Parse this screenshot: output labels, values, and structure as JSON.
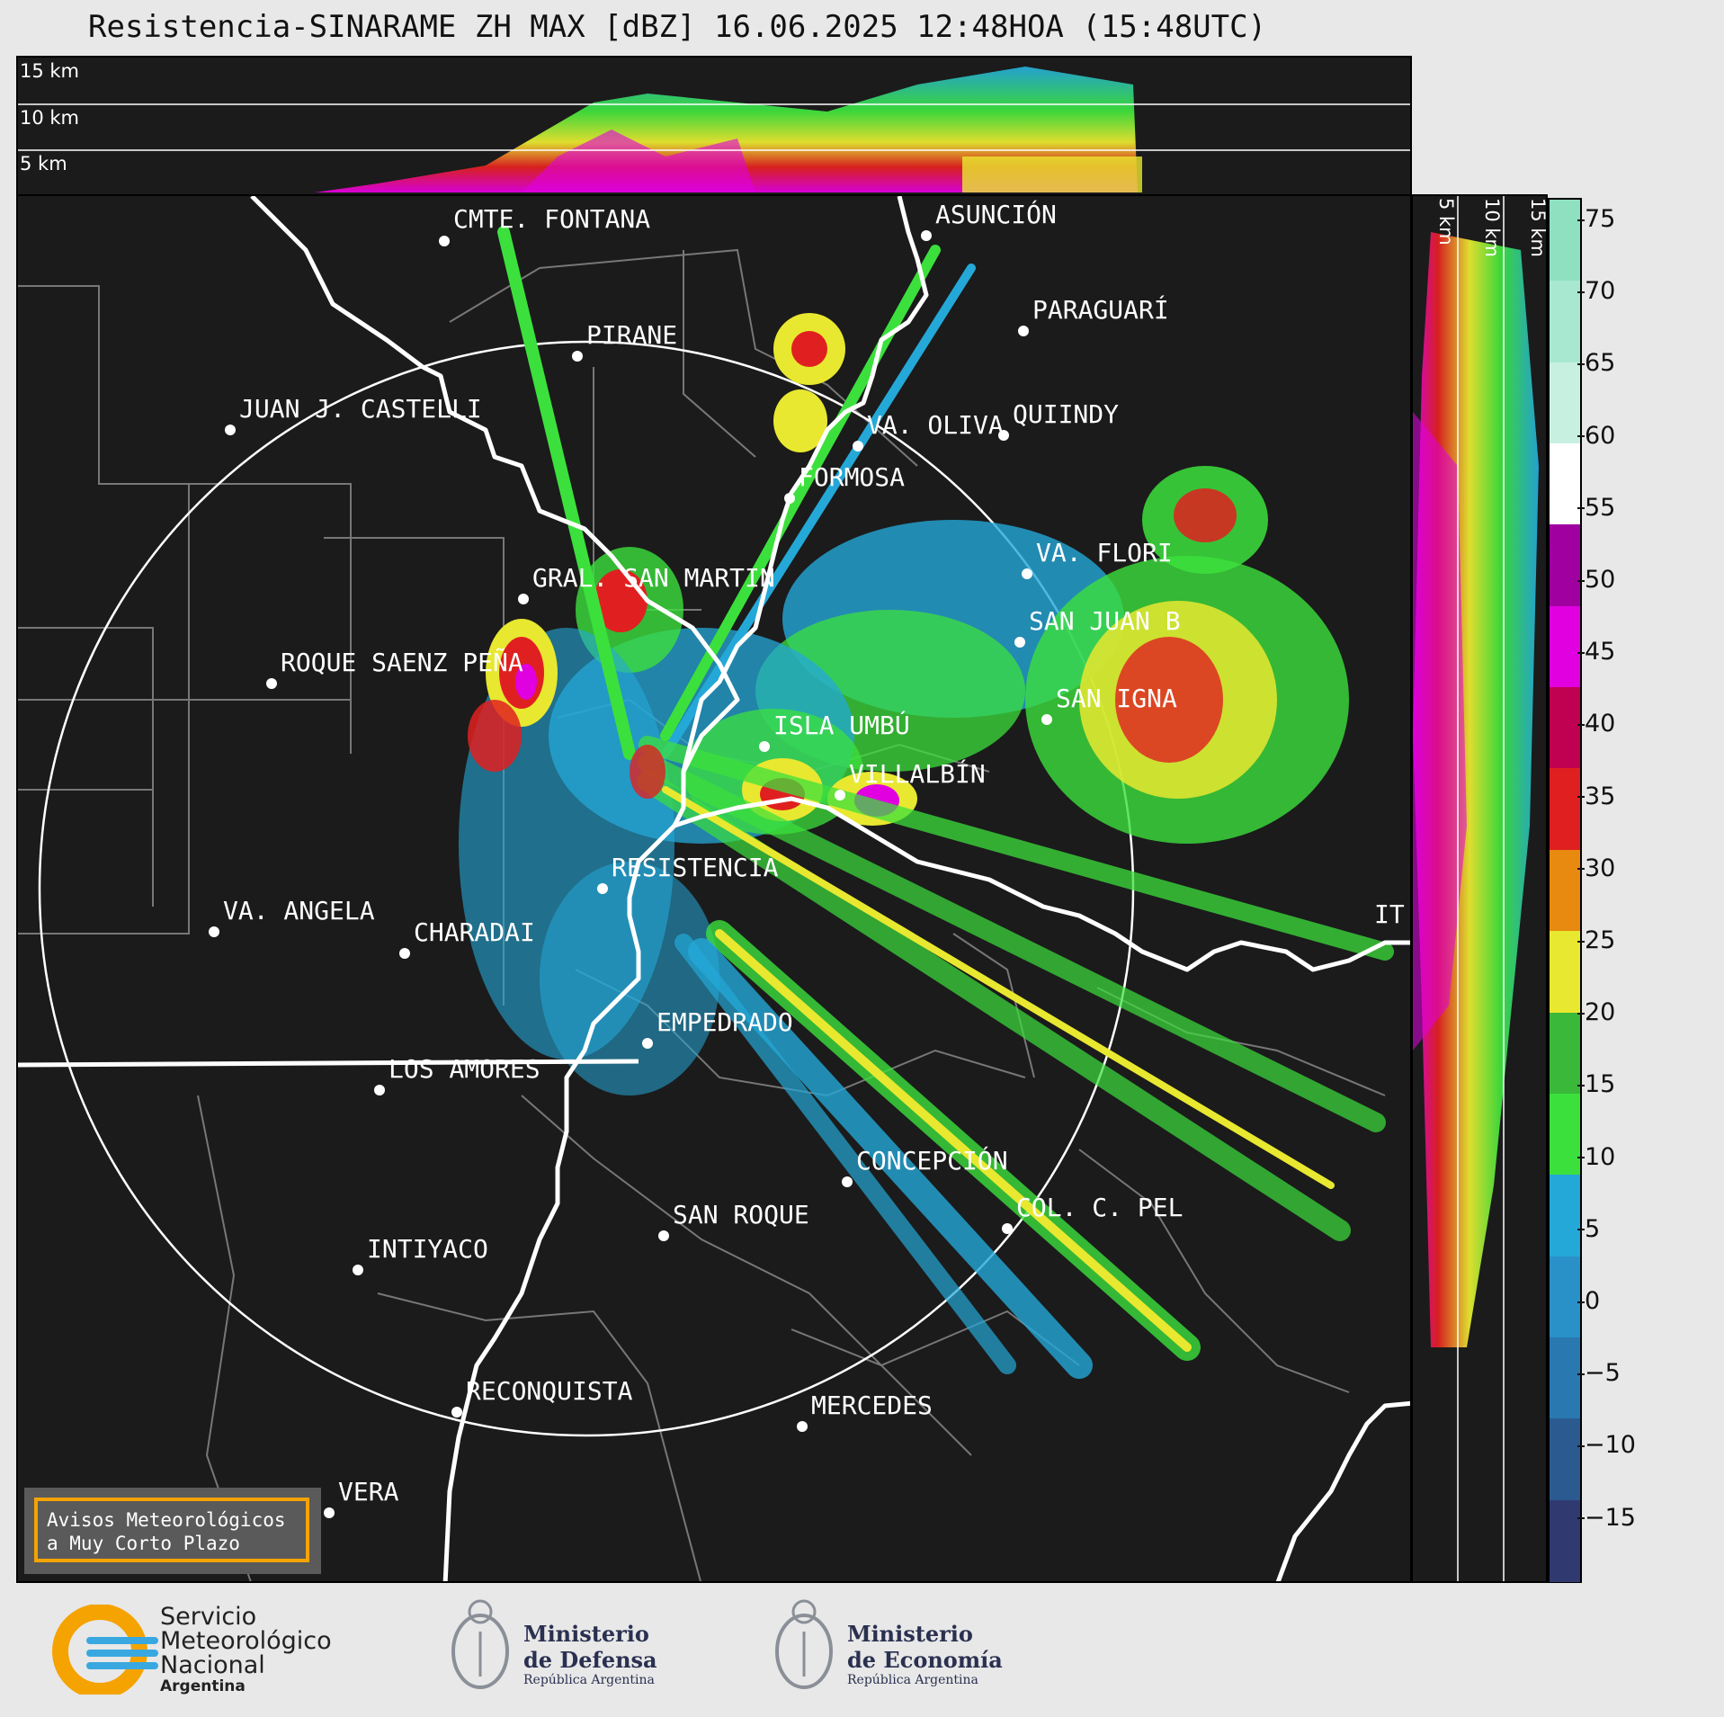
{
  "title": "Resistencia-SINARAME ZH MAX [dBZ] 16.06.2025 12:48HOA (15:48UTC)",
  "top_altitudes": [
    "15 km",
    "10 km",
    "5 km"
  ],
  "side_altitudes": [
    "5 km",
    "10 km",
    "15 km"
  ],
  "places": [
    {
      "name": "CMTE. FONTANA"
    },
    {
      "name": "ASUNCIÓN"
    },
    {
      "name": "PARAGUARÍ"
    },
    {
      "name": "PIRANE"
    },
    {
      "name": "JUAN J. CASTELLI"
    },
    {
      "name": "VA. OLIVA"
    },
    {
      "name": "QUIINDY"
    },
    {
      "name": "FORMOSA"
    },
    {
      "name": "VA. FLORI"
    },
    {
      "name": "GRAL. SAN MARTIN"
    },
    {
      "name": "SAN JUAN B"
    },
    {
      "name": "ROQUE SAENZ PEÑA"
    },
    {
      "name": "SAN IGNA"
    },
    {
      "name": "ISLA UMBÚ"
    },
    {
      "name": "VILLALBÍN"
    },
    {
      "name": "RESISTENCIA"
    },
    {
      "name": "VA. ANGELA"
    },
    {
      "name": "CHARADAI"
    },
    {
      "name": "IT"
    },
    {
      "name": "EMPEDRADO"
    },
    {
      "name": "LOS AMORES"
    },
    {
      "name": "CONCEPCIÓN"
    },
    {
      "name": "SAN ROQUE"
    },
    {
      "name": "COL. C. PEL"
    },
    {
      "name": "INTIYACO"
    },
    {
      "name": "RECONQUISTA"
    },
    {
      "name": "MERCEDES"
    },
    {
      "name": "VERA"
    }
  ],
  "colorbar": {
    "unit": "dBZ",
    "ticks": [
      "75",
      "70",
      "65",
      "60",
      "55",
      "50",
      "45",
      "40",
      "35",
      "30",
      "25",
      "20",
      "15",
      "10",
      "5",
      "0",
      "−5",
      "−10",
      "−15"
    ],
    "colors": [
      "#8fe0c0",
      "#a8e8d0",
      "#c8f0e0",
      "#ffffff",
      "#a000a0",
      "#e000e0",
      "#c00050",
      "#e02020",
      "#e88a10",
      "#e8e830",
      "#3ab83a",
      "#3ce03c",
      "#24a8d8",
      "#2a90c8",
      "#2a78b0",
      "#2a5a90",
      "#303a70"
    ]
  },
  "notice": {
    "line1": "Avisos Meteorológicos",
    "line2": "a Muy Corto Plazo"
  },
  "logos": {
    "smn": {
      "line1": "Servicio",
      "line2": "Meteorológico",
      "line3": "Nacional",
      "line4": "Argentina"
    },
    "defensa": {
      "line1": "Ministerio",
      "line2": "de Defensa",
      "line3": "República Argentina"
    },
    "economia": {
      "line1": "Ministerio",
      "line2": "de Economía",
      "line3": "República Argentina"
    }
  }
}
